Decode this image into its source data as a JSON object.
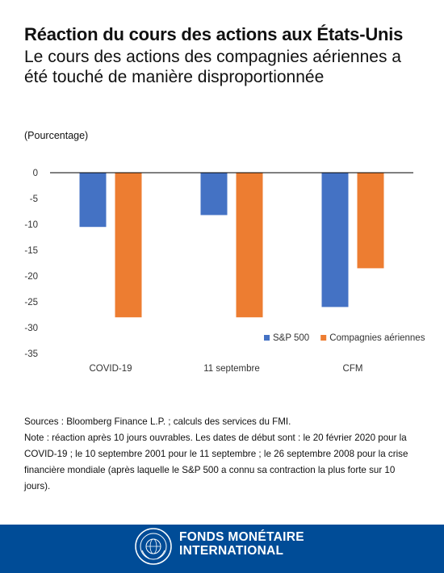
{
  "header": {
    "title": "Réaction du cours des actions aux États-Unis",
    "subtitle": "Le cours des actions des compagnies aériennes a été touché de manière disproportionnée",
    "unit": "(Pourcentage)"
  },
  "chart_data": {
    "type": "bar",
    "categories": [
      "COVID-19",
      "11 septembre",
      "CFM"
    ],
    "series": [
      {
        "name": "S&P 500",
        "color": "#4472c4",
        "values": [
          -10.5,
          -8.2,
          -26
        ]
      },
      {
        "name": "Compagnies aériennes",
        "color": "#ed7d31",
        "values": [
          -28,
          -28,
          -18.5
        ]
      }
    ],
    "ylim": [
      -35,
      0
    ],
    "yticks": [
      "0",
      "-5",
      "-10",
      "-15",
      "-20",
      "-25",
      "-30",
      "-35"
    ],
    "legend_position": "bottom-right",
    "grid": false
  },
  "notes": {
    "sources": "Sources : Bloomberg Finance L.P. ; calculs des services du FMI.",
    "note": "Note : réaction après 10 jours ouvrables. Les dates de début sont : le 20 février 2020 pour la COVID-19 ; le 10 septembre 2001 pour le 11 septembre ; le 26 septembre 2008 pour la crise financière mondiale (après laquelle le S&P 500 a connu sa contraction la plus forte sur 10 jours)."
  },
  "footer": {
    "org_line1": "FONDS MONÉTAIRE",
    "org_line2": "INTERNATIONAL",
    "background": "#004c97"
  }
}
